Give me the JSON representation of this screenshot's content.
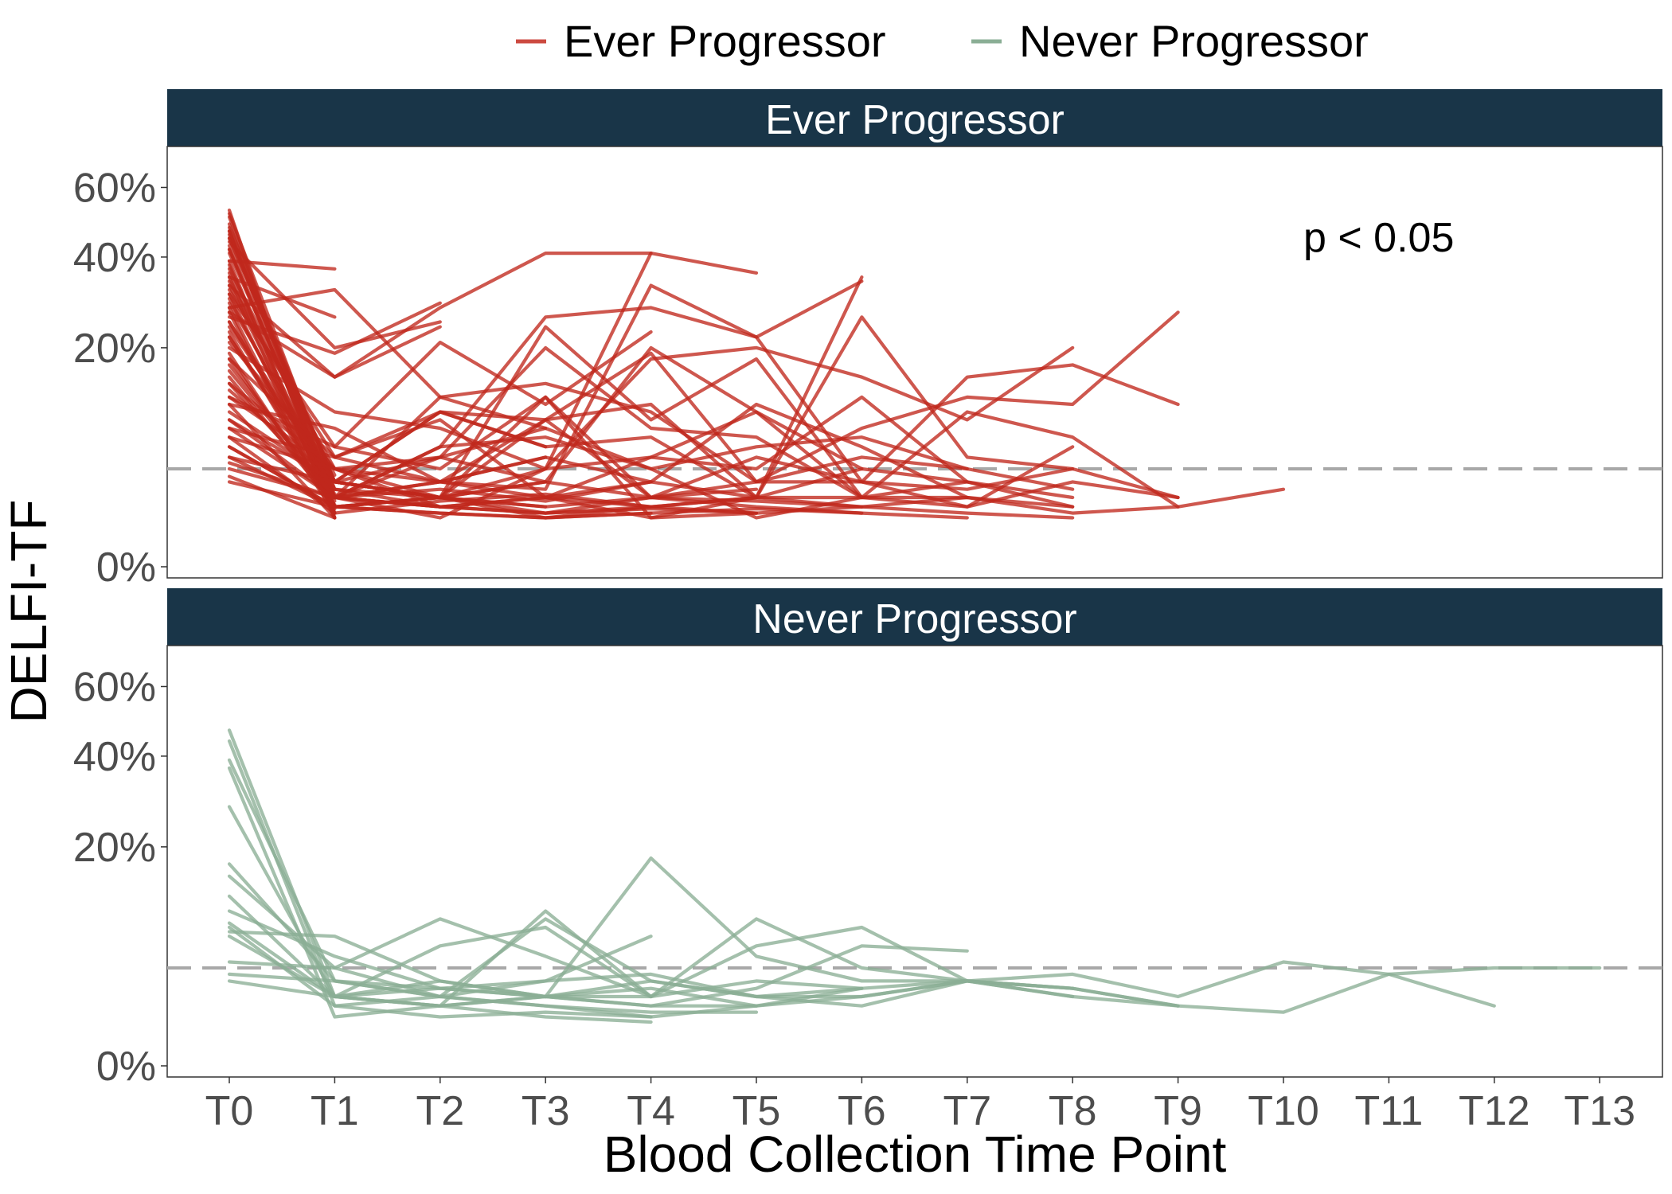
{
  "chart_data": {
    "type": "line",
    "xlabel": "Blood Collection Time Point",
    "ylabel": "DELFI-TF",
    "categories": [
      "T0",
      "T1",
      "T2",
      "T3",
      "T4",
      "T5",
      "T6",
      "T7",
      "T8",
      "T9",
      "T10",
      "T11",
      "T12",
      "T13"
    ],
    "y_scale": "sqrt",
    "ylim": [
      0,
      0.72
    ],
    "yticks": [
      0,
      0.2,
      0.4,
      0.6
    ],
    "ytick_labels": [
      "0%",
      "20%",
      "40%",
      "60%"
    ],
    "threshold": 0.04,
    "threshold_style": "dashed",
    "legend": {
      "position": "top",
      "items": [
        {
          "name": "Ever Progressor",
          "color": "#c0281c"
        },
        {
          "name": "Never Progressor",
          "color": "#8aae95"
        }
      ]
    },
    "panels": [
      {
        "title": "Ever Progressor",
        "color": "#c0281c",
        "annotation": "p < 0.05",
        "series": [
          {
            "values": [
              0.53,
              0.01
            ]
          },
          {
            "values": [
              0.51,
              0.015
            ]
          },
          {
            "values": [
              0.49,
              0.02
            ]
          },
          {
            "values": [
              0.47,
              0.012
            ]
          },
          {
            "values": [
              0.45,
              0.03
            ]
          },
          {
            "values": [
              0.43,
              0.018
            ]
          },
          {
            "values": [
              0.41,
              0.025
            ]
          },
          {
            "values": [
              0.39,
              0.01
            ]
          },
          {
            "values": [
              0.37,
              0.035
            ]
          },
          {
            "values": [
              0.35,
              0.012
            ]
          },
          {
            "values": [
              0.33,
              0.02
            ]
          },
          {
            "values": [
              0.31,
              0.015
            ]
          },
          {
            "values": [
              0.29,
              0.03
            ]
          },
          {
            "values": [
              0.27,
              0.01
            ]
          },
          {
            "values": [
              0.25,
              0.022
            ]
          },
          {
            "values": [
              0.23,
              0.014
            ]
          },
          {
            "values": [
              0.21,
              0.04
            ]
          },
          {
            "values": [
              0.19,
              0.012
            ]
          },
          {
            "values": [
              0.17,
              0.02
            ]
          },
          {
            "values": [
              0.15,
              0.016
            ]
          },
          {
            "values": [
              0.13,
              0.03
            ]
          },
          {
            "values": [
              0.11,
              0.01
            ]
          },
          {
            "values": [
              0.09,
              0.02
            ]
          },
          {
            "values": [
              0.07,
              0.012
            ]
          },
          {
            "values": [
              0.05,
              0.015
            ]
          },
          {
            "values": [
              0.034,
              0.01
            ]
          },
          {
            "values": [
              0.52,
              0.025,
              0.015
            ]
          },
          {
            "values": [
              0.46,
              0.03,
              0.02,
              0.015
            ]
          },
          {
            "values": [
              0.42,
              0.02,
              0.05,
              0.03
            ]
          },
          {
            "values": [
              0.38,
              0.015,
              0.02,
              0.01,
              0.012
            ]
          },
          {
            "values": [
              0.34,
              0.04,
              0.03,
              0.05
            ]
          },
          {
            "values": [
              0.3,
              0.02,
              0.025,
              0.018,
              0.03
            ]
          },
          {
            "values": [
              0.28,
              0.012,
              0.018,
              0.022,
              0.015,
              0.02
            ]
          },
          {
            "values": [
              0.24,
              0.03,
              0.1,
              0.06
            ]
          },
          {
            "values": [
              0.22,
              0.025,
              0.02,
              0.03,
              0.02,
              0.025
            ]
          },
          {
            "values": [
              0.18,
              0.015,
              0.012,
              0.01,
              0.015
            ]
          },
          {
            "values": [
              0.14,
              0.02,
              0.03,
              0.02,
              0.01,
              0.012
            ]
          },
          {
            "values": [
              0.12,
              0.04,
              0.015,
              0.012,
              0.02,
              0.015,
              0.012
            ]
          },
          {
            "values": [
              0.1,
              0.03,
              0.02,
              0.015,
              0.02,
              0.018,
              0.015
            ]
          },
          {
            "values": [
              0.08,
              0.02,
              0.015,
              0.012,
              0.014,
              0.012
            ]
          },
          {
            "values": [
              0.06,
              0.015,
              0.012,
              0.01,
              0.012,
              0.014,
              0.012,
              0.01
            ]
          },
          {
            "values": [
              0.04,
              0.02,
              0.015,
              0.02,
              0.015,
              0.012,
              0.015,
              0.012,
              0.01
            ]
          },
          {
            "values": [
              0.03,
              0.015,
              0.02,
              0.012,
              0.015,
              0.02,
              0.015,
              0.02,
              0.012,
              0.015
            ]
          },
          {
            "values": [
              0.26,
              0.19,
              0.29
            ]
          },
          {
            "values": [
              0.35,
              0.26
            ]
          },
          {
            "values": [
              0.39,
              0.37
            ]
          },
          {
            "values": [
              0.33,
              0.15,
              0.24
            ]
          },
          {
            "values": [
              0.28,
              0.32,
              0.12,
              0.08
            ]
          },
          {
            "values": [
              0.44,
              0.2,
              0.25
            ]
          },
          {
            "values": [
              0.31,
              0.06,
              0.21,
              0.11,
              0.23
            ]
          },
          {
            "values": [
              0.45,
              0.03,
              0.02,
              0.04,
              0.41,
              0.36
            ]
          },
          {
            "values": [
              0.27,
              0.15,
              0.28,
              0.41,
              0.41
            ]
          },
          {
            "values": [
              0.36,
              0.02,
              0.06,
              0.26,
              0.28,
              0.22,
              0.34
            ]
          },
          {
            "values": [
              0.47,
              0.02,
              0.01,
              0.04,
              0.18,
              0.2,
              0.15,
              0.09,
              0.2
            ]
          },
          {
            "values": [
              0.48,
              0.03,
              0.02,
              0.12,
              0.01,
              0.02,
              0.35
            ]
          },
          {
            "values": [
              0.42,
              0.02,
              0.03,
              0.025,
              0.33,
              0.22,
              0.03,
              0.15,
              0.17,
              0.11
            ]
          },
          {
            "values": [
              0.32,
              0.05,
              0.1,
              0.09,
              0.11,
              0.02,
              0.26,
              0.05,
              0.04,
              0.02
            ]
          },
          {
            "values": [
              0.25,
              0.03,
              0.02,
              0.24,
              0.09,
              0.18,
              0.02
            ]
          },
          {
            "values": [
              0.22,
              0.02,
              0.12,
              0.14,
              0.1,
              0.03,
              0.08,
              0.12,
              0.11,
              0.27
            ]
          },
          {
            "values": [
              0.2,
              0.1,
              0.08,
              0.04,
              0.05,
              0.1,
              0.02,
              0.1,
              0.07,
              0.015,
              0.025
            ]
          },
          {
            "values": [
              0.18,
              0.05,
              0.03,
              0.09,
              0.19,
              0.03,
              0.03,
              0.015,
              0.06
            ]
          },
          {
            "values": [
              0.16,
              0.02,
              0.06,
              0.07,
              0.04,
              0.06,
              0.07,
              0.04,
              0.025
            ]
          },
          {
            "values": [
              0.14,
              0.04,
              0.05,
              0.2,
              0.08,
              0.07,
              0.02,
              0.03,
              0.015
            ]
          },
          {
            "values": [
              0.12,
              0.06,
              0.04,
              0.12,
              0.02,
              0.03,
              0.05,
              0.04
            ]
          },
          {
            "values": [
              0.11,
              0.08,
              0.03,
              0.05,
              0.03,
              0.11,
              0.06,
              0.02
            ]
          },
          {
            "values": [
              0.09,
              0.03,
              0.1,
              0.06,
              0.07,
              0.02,
              0.04
            ]
          },
          {
            "values": [
              0.08,
              0.05,
              0.09,
              0.02,
              0.05,
              0.04,
              0.12,
              0.03
            ]
          },
          {
            "values": [
              0.07,
              0.04,
              0.02,
              0.09,
              0.02,
              0.05,
              0.03,
              0.025,
              0.04
            ]
          },
          {
            "values": [
              0.06,
              0.015,
              0.02,
              0.03,
              0.2,
              0.1,
              0.04,
              0.03,
              0.02
            ]
          },
          {
            "values": [
              0.05,
              0.03,
              0.05,
              0.08,
              0.04,
              0.01,
              0.02,
              0.02,
              0.015
            ]
          },
          {
            "values": [
              0.045,
              0.02,
              0.015,
              0.02,
              0.03,
              0.02,
              0.02,
              0.015,
              0.03,
              0.02
            ]
          }
        ]
      },
      {
        "title": "Never Progressor",
        "color": "#8aae95",
        "annotation": "",
        "series": [
          {
            "values": [
              0.47,
              0.02,
              0.015,
              0.01,
              0.008
            ]
          },
          {
            "values": [
              0.44,
              0.015,
              0.01,
              0.012,
              0.01
            ]
          },
          {
            "values": [
              0.39,
              0.03,
              0.02,
              0.015,
              0.012,
              0.012
            ]
          },
          {
            "values": [
              0.37,
              0.01,
              0.015,
              0.02,
              0.015,
              0.015
            ]
          },
          {
            "values": [
              0.28,
              0.02,
              0.025,
              0.02,
              0.02
            ]
          },
          {
            "values": [
              0.17,
              0.03,
              0.02,
              0.09,
              0.03,
              0.02,
              0.025
            ]
          },
          {
            "values": [
              0.15,
              0.04,
              0.09,
              0.05,
              0.02,
              0.09,
              0.04,
              0.03,
              0.02
            ]
          },
          {
            "values": [
              0.12,
              0.02,
              0.015,
              0.1,
              0.02,
              0.06,
              0.08,
              0.03,
              0.025,
              0.015
            ]
          },
          {
            "values": [
              0.1,
              0.05,
              0.025,
              0.02,
              0.18,
              0.05,
              0.03,
              0.03,
              0.02,
              0.015
            ]
          },
          {
            "values": [
              0.085,
              0.02,
              0.06,
              0.08,
              0.02,
              0.03,
              0.025,
              0.03,
              0.035,
              0.02,
              0.045,
              0.035,
              0.04,
              0.04
            ]
          },
          {
            "values": [
              0.08,
              0.015,
              0.02,
              0.03,
              0.035,
              0.02,
              0.02,
              0.03,
              0.025,
              0.015,
              0.012,
              0.035,
              0.015
            ]
          },
          {
            "values": [
              0.075,
              0.07,
              0.03,
              0.02,
              0.025,
              0.015,
              0.025
            ]
          },
          {
            "values": [
              0.07,
              0.02,
              0.015,
              0.02,
              0.015,
              0.025,
              0.06,
              0.055
            ]
          },
          {
            "values": [
              0.045,
              0.04,
              0.02,
              0.015,
              0.01,
              0.015,
              0.02,
              0.03
            ]
          },
          {
            "values": [
              0.035,
              0.03,
              0.025,
              0.03,
              0.07
            ]
          },
          {
            "values": [
              0.03,
              0.02,
              0.03,
              0.02,
              0.03,
              0.02,
              0.015,
              0.03,
              0.025
            ]
          }
        ]
      }
    ]
  }
}
